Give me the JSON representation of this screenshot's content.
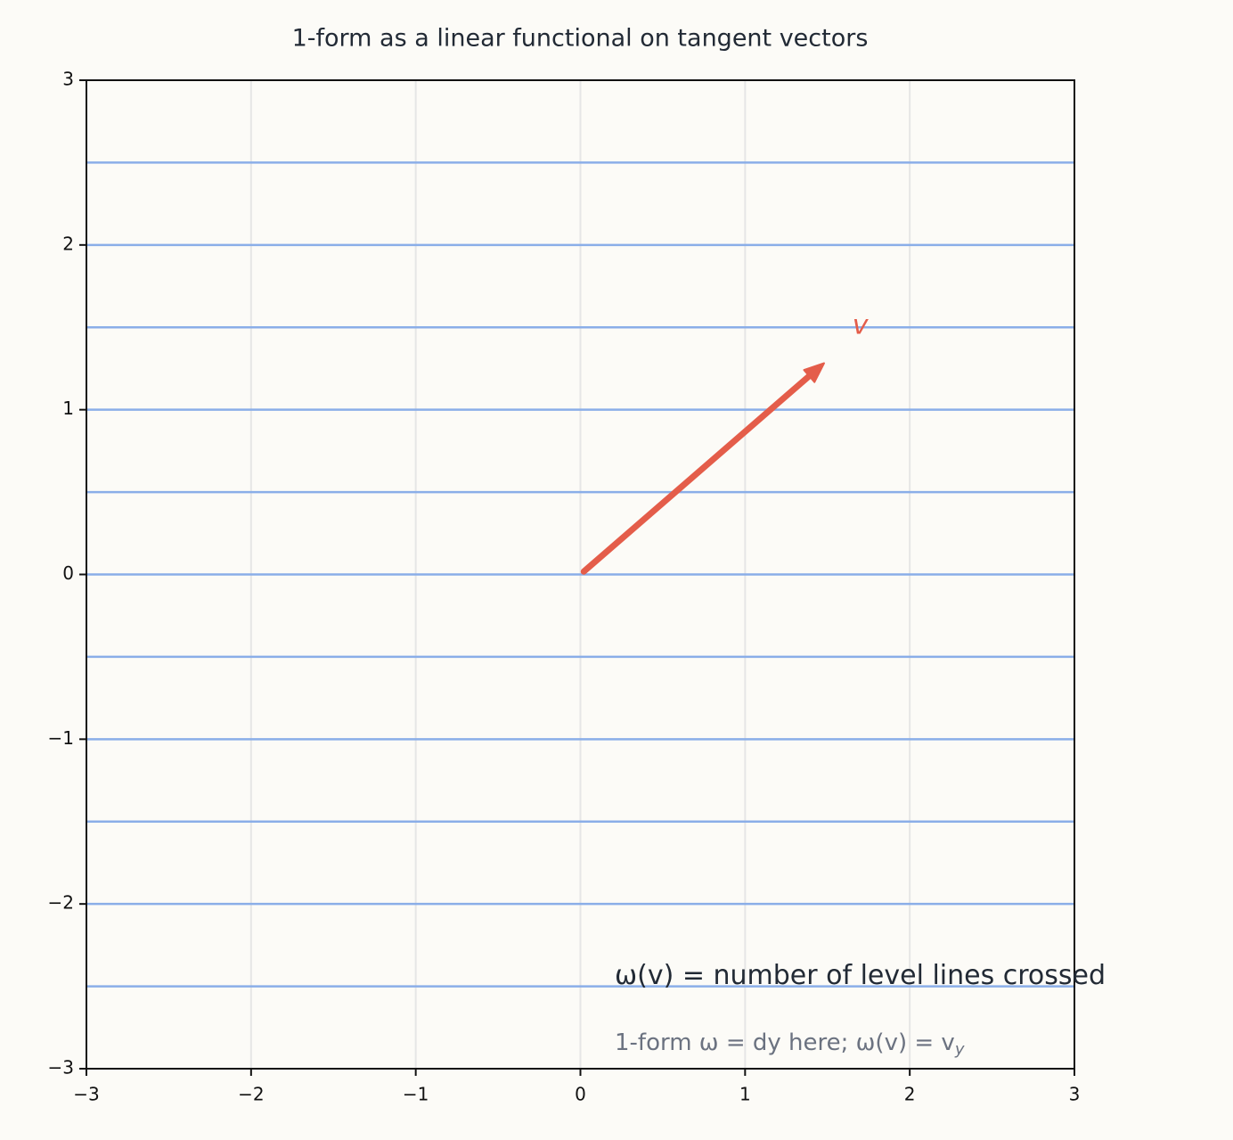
{
  "chart_data": {
    "type": "vector",
    "title": "1-form as a linear functional on tangent vectors",
    "xlim": [
      -3,
      3
    ],
    "ylim": [
      -3,
      3
    ],
    "xticks": [
      {
        "value": -3,
        "label": "−3"
      },
      {
        "value": -2,
        "label": "−2"
      },
      {
        "value": -1,
        "label": "−1"
      },
      0,
      1,
      2,
      3
    ],
    "yticks": [
      {
        "value": -3,
        "label": "−3"
      },
      {
        "value": -2,
        "label": "−2"
      },
      {
        "value": -1,
        "label": "−1"
      },
      0,
      1,
      2,
      3
    ],
    "grid": "x",
    "level_lines": [
      -2.5,
      -2,
      -1.5,
      -1,
      -0.5,
      0,
      0.5,
      1,
      1.5,
      2,
      2.5
    ],
    "level_color": "#8aaee8",
    "vector": {
      "label": "v",
      "x": [
        0,
        1.5
      ],
      "y": [
        0,
        1.3
      ],
      "color": "#e45d4a"
    },
    "annotations": [
      {
        "text": "ω(v) = number of level lines crossed",
        "color": "#222a35"
      },
      {
        "text": "1-form ω = dy here; ω(v) = v",
        "sub": "y",
        "color": "#6b7280"
      }
    ]
  }
}
